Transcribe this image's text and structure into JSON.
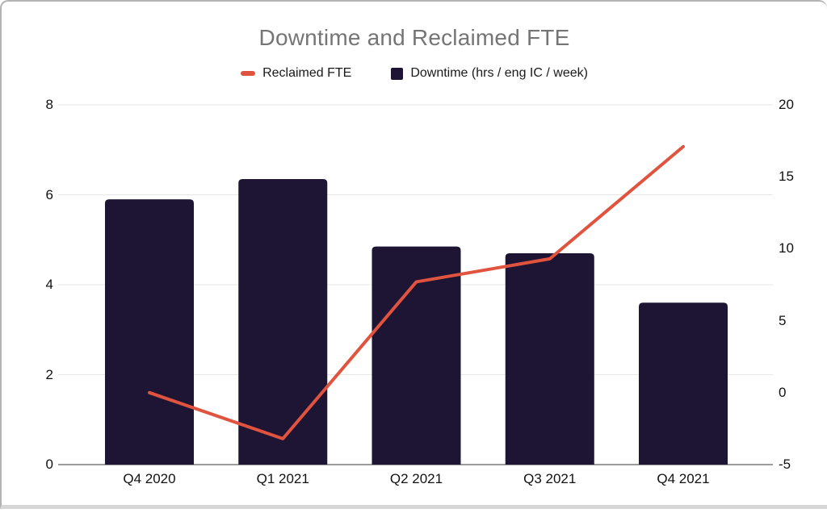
{
  "chart_data": {
    "type": "combo",
    "title": "Downtime and Reclaimed FTE",
    "categories": [
      "Q4 2020",
      "Q1 2021",
      "Q2 2021",
      "Q3 2021",
      "Q4 2021"
    ],
    "series": [
      {
        "name": "Reclaimed FTE",
        "type": "line",
        "axis": "right",
        "color": "#e0533f",
        "values": [
          0,
          -3.2,
          7.7,
          9.3,
          17.1
        ]
      },
      {
        "name": "Downtime (hrs / eng IC / week)",
        "type": "bar",
        "axis": "left",
        "color": "#1e1433",
        "values": [
          5.9,
          6.35,
          4.85,
          4.7,
          3.6
        ]
      }
    ],
    "left_axis": {
      "range": [
        0,
        8
      ],
      "ticks": [
        0,
        2,
        4,
        6,
        8
      ]
    },
    "right_axis": {
      "range": [
        -5,
        20
      ],
      "ticks": [
        -5,
        0,
        5,
        10,
        15,
        20
      ]
    },
    "grid": true,
    "legend_position": "top"
  },
  "colors": {
    "title_text": "#757575",
    "axis_text": "#111111",
    "gridline": "#e7e7e7",
    "baseline": "#9b9b9b",
    "card_border": "#b3b3b3",
    "bottom_edge": "#d7d7d7",
    "background": "#ffffff"
  }
}
